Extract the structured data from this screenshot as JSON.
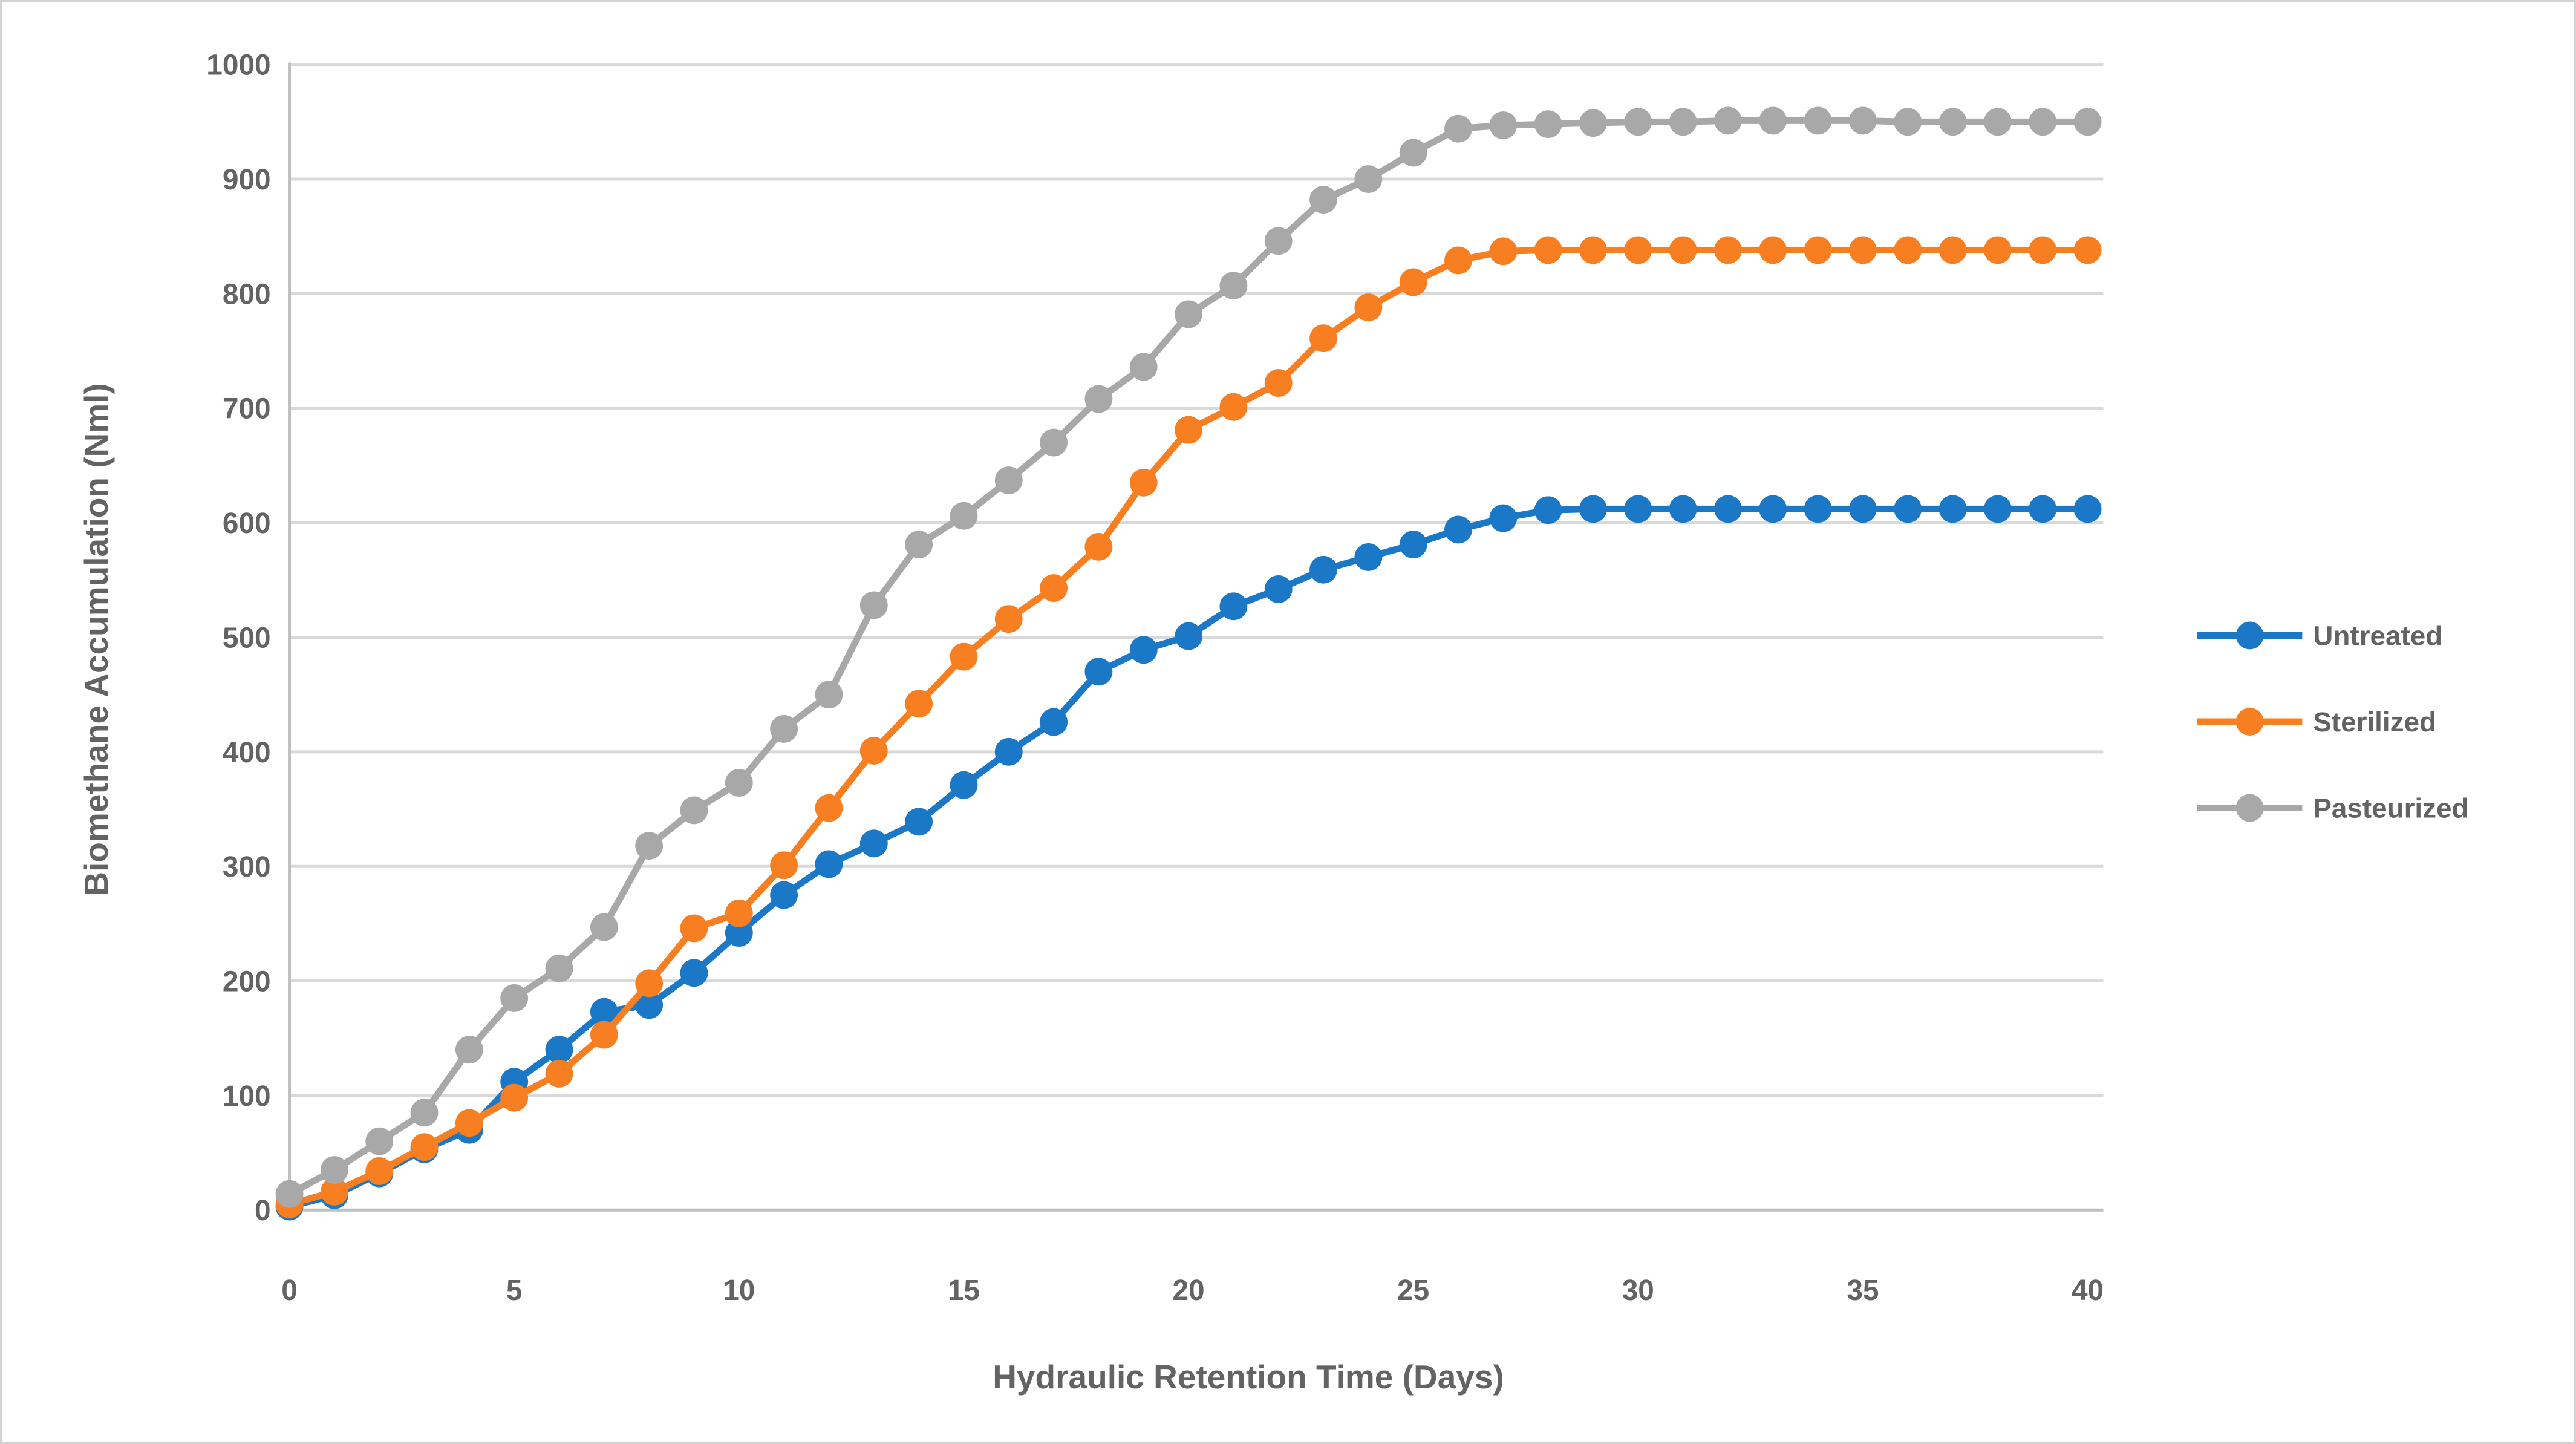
{
  "chart_data": {
    "type": "line",
    "title": "",
    "xlabel": "Hydraulic Retention Time (Days)",
    "ylabel": "Biomethane Accumulation (Nml)",
    "xlim": [
      0,
      40
    ],
    "ylim": [
      0,
      1000
    ],
    "xticks": [
      0,
      5,
      10,
      15,
      20,
      25,
      30,
      35,
      40
    ],
    "yticks": [
      0,
      100,
      200,
      300,
      400,
      500,
      600,
      700,
      800,
      900,
      1000
    ],
    "grid": "horizontal",
    "legend_position": "right",
    "x": [
      0,
      1,
      2,
      3,
      4,
      5,
      6,
      7,
      8,
      9,
      10,
      11,
      12,
      13,
      14,
      15,
      16,
      17,
      18,
      19,
      20,
      21,
      22,
      23,
      24,
      25,
      26,
      27,
      28,
      29,
      30,
      31,
      32,
      33,
      34,
      35,
      36,
      37,
      38,
      39,
      40
    ],
    "series": [
      {
        "name": "Untreated",
        "color": "#1b78c6",
        "marker": "circle",
        "values": [
          3,
          13,
          32,
          53,
          70,
          112,
          140,
          173,
          179,
          207,
          242,
          275,
          302,
          320,
          339,
          371,
          400,
          426,
          470,
          489,
          501,
          527,
          542,
          559,
          570,
          581,
          594,
          604,
          611,
          612,
          612,
          612,
          612,
          612,
          612,
          612,
          612,
          612,
          612,
          612,
          612
        ]
      },
      {
        "name": "Sterilized",
        "color": "#f87f21",
        "marker": "circle",
        "values": [
          5,
          16,
          34,
          55,
          76,
          98,
          119,
          153,
          198,
          246,
          259,
          301,
          351,
          401,
          442,
          483,
          516,
          543,
          579,
          635,
          681,
          701,
          722,
          761,
          788,
          810,
          829,
          837,
          838,
          838,
          838,
          838,
          838,
          838,
          838,
          838,
          838,
          838,
          838,
          838,
          838
        ]
      },
      {
        "name": "Pasteurized",
        "color": "#a8a8a8",
        "marker": "circle",
        "values": [
          14,
          35,
          60,
          85,
          140,
          185,
          211,
          247,
          318,
          349,
          373,
          420,
          450,
          528,
          581,
          606,
          637,
          670,
          708,
          736,
          782,
          807,
          846,
          882,
          900,
          923,
          944,
          947,
          948,
          949,
          950,
          950,
          951,
          951,
          951,
          951,
          950,
          950,
          950,
          950,
          950
        ]
      }
    ],
    "style": {
      "grid_color": "#d9d9d9",
      "axis_line_color": "#bfbfbf",
      "tick_label_color": "#636363",
      "legend_text_color": "#636363"
    }
  }
}
